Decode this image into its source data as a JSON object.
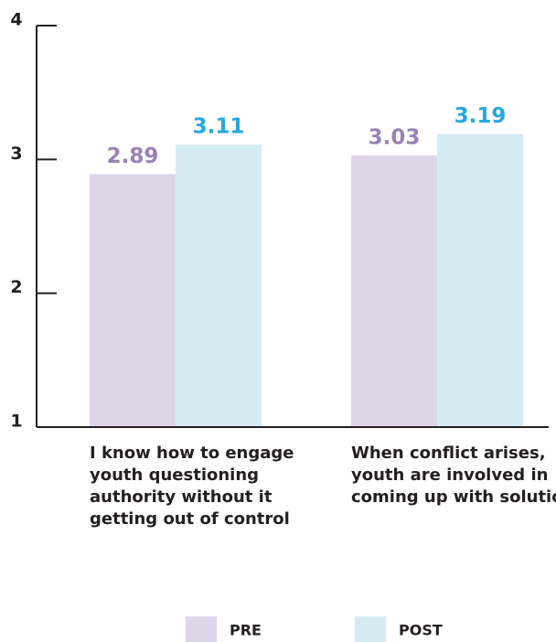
{
  "chart_data": {
    "type": "bar",
    "categories": [
      "I know how to engage youth questioning authority without it getting out of control",
      "When conflict arises, youth are involved in coming up with solutions"
    ],
    "series": [
      {
        "name": "PRE",
        "color": "#ddd5e8",
        "label_color": "#9a82b6",
        "values": [
          2.89,
          3.03
        ]
      },
      {
        "name": "POST",
        "color": "#d5ecf4",
        "label_color": "#27a8e0",
        "values": [
          3.11,
          3.19
        ]
      }
    ],
    "ylim": [
      1,
      4
    ],
    "yticks": [
      1,
      2,
      3,
      4
    ],
    "legend": "bottom"
  }
}
